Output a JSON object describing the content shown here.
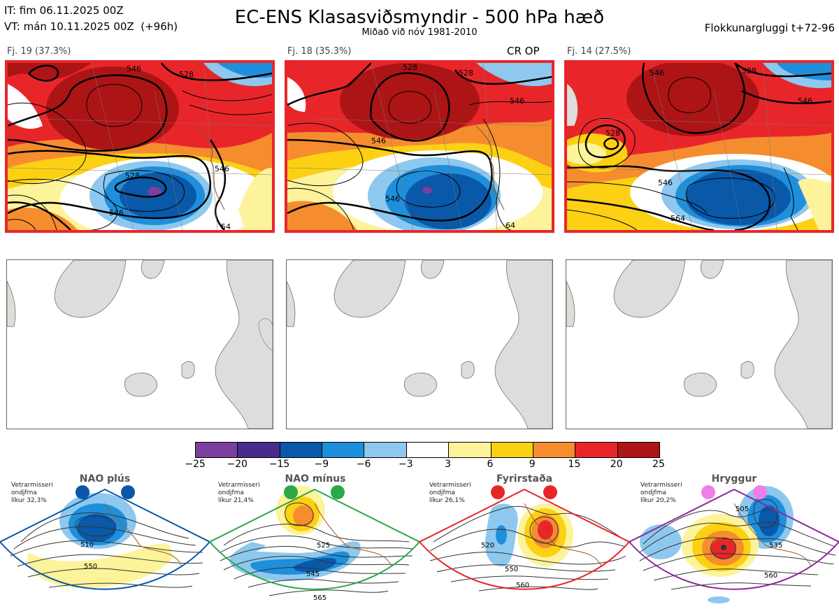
{
  "header": {
    "it_line": "IT: fim 06.11.2025 00Z",
    "vt_line": "VT: mán 10.11.2025 00Z  (+96h)",
    "title": "EC-ENS Klasasviðsmyndir - 500 hPa hæð",
    "subtitle": "Miðað við nóv 1981-2010",
    "window": "Flokkunargluggi t+72-96"
  },
  "clusters": [
    {
      "label": "Fj. 19 (37.3%)",
      "tag": "",
      "contours": [
        "528",
        "546",
        "528",
        "546",
        "546",
        "54"
      ]
    },
    {
      "label": "Fj. 18 (35.3%)",
      "tag": "CR OP",
      "contours": [
        "528",
        "528",
        "546",
        "546",
        "546",
        "64"
      ]
    },
    {
      "label": "Fj. 14 (27.5%)",
      "tag": "",
      "contours": [
        "546",
        "528",
        "546",
        "528",
        "546",
        "564"
      ]
    }
  ],
  "colorbar": {
    "ticks": [
      "-25",
      "-20",
      "-15",
      "-9",
      "-6",
      "-3",
      "3",
      "6",
      "9",
      "15",
      "20",
      "25"
    ],
    "colors": [
      "#7b3f9e",
      "#4a2a8c",
      "#0a58a8",
      "#1f8fdc",
      "#8ec8ef",
      "#ffffff",
      "#fdf39a",
      "#fcd113",
      "#f58d2f",
      "#e8262a",
      "#ad1416"
    ]
  },
  "regimes": [
    {
      "name": "NAO plús",
      "stats": "Vetrarmisseri\nondjfma\nlíkur 32,3%",
      "border": "#0a58a8",
      "dot": "#0a58a8",
      "contours": [
        "510",
        "550"
      ]
    },
    {
      "name": "NAO mínus",
      "stats": "Vetrarmisseri\nondjfma\nlíkur 21,4%",
      "border": "#2aa84a",
      "dot": "#2aa84a",
      "contours": [
        "525",
        "545",
        "565"
      ]
    },
    {
      "name": "Fyrirstaða",
      "stats": "Vetrarmisseri\nondjfma\nlíkur 26,1%",
      "border": "#e8262a",
      "dot": "#e8262a",
      "contours": [
        "520",
        "550",
        "560"
      ]
    },
    {
      "name": "Hryggur",
      "stats": "Vetrarmisseri\nondjfma\nlíkur 20,2%",
      "border": "#8a2a9a",
      "dot": "#ee7fe8",
      "contours": [
        "505",
        "535",
        "560"
      ]
    }
  ]
}
